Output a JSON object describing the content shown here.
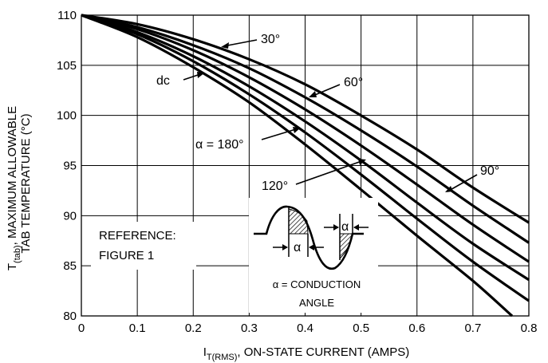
{
  "chart_data": {
    "type": "line",
    "xlabel": {
      "prefix": "I",
      "sub": "T(RMS)",
      "rest": ", ON-STATE CURRENT (AMPS)"
    },
    "ylabel": {
      "prefix": "T",
      "sub": "(tab)",
      "rest": ", MAXIMUM ALLOWABLE",
      "line2": "TAB TEMPERATURE (°C)"
    },
    "xlim": [
      0,
      0.8
    ],
    "ylim": [
      80,
      110
    ],
    "x_ticks": [
      "0",
      "0.1",
      "0.2",
      "0.3",
      "0.4",
      "0.5",
      "0.6",
      "0.7",
      "0.8"
    ],
    "y_ticks": [
      "80",
      "85",
      "90",
      "95",
      "100",
      "105",
      "110"
    ],
    "grid": true,
    "series": [
      {
        "name": "30°",
        "x": [
          0,
          0.1,
          0.2,
          0.3,
          0.4,
          0.5,
          0.6,
          0.7,
          0.8
        ],
        "y": [
          110,
          109.1,
          107.6,
          105.6,
          103.1,
          100.0,
          96.6,
          92.8,
          89.3
        ]
      },
      {
        "name": "60°",
        "x": [
          0,
          0.1,
          0.2,
          0.3,
          0.4,
          0.5,
          0.6,
          0.7,
          0.8
        ],
        "y": [
          110,
          108.8,
          107.0,
          104.7,
          101.8,
          98.5,
          94.9,
          91.0,
          87.3
        ]
      },
      {
        "name": "90°",
        "x": [
          0,
          0.1,
          0.2,
          0.3,
          0.4,
          0.5,
          0.6,
          0.7,
          0.8
        ],
        "y": [
          110,
          108.6,
          106.5,
          103.8,
          100.6,
          97.0,
          93.1,
          89.1,
          85.4
        ]
      },
      {
        "name": "120°",
        "x": [
          0,
          0.1,
          0.2,
          0.3,
          0.4,
          0.5,
          0.6,
          0.7,
          0.8
        ],
        "y": [
          110,
          108.3,
          105.9,
          102.9,
          99.4,
          95.5,
          91.3,
          87.2,
          83.6
        ]
      },
      {
        "name": "180°",
        "x": [
          0,
          0.1,
          0.2,
          0.3,
          0.4,
          0.5,
          0.6,
          0.7,
          0.8
        ],
        "y": [
          110,
          108.1,
          105.4,
          102.1,
          98.3,
          94.1,
          89.7,
          85.4,
          81.5
        ]
      },
      {
        "name": "dc",
        "x": [
          0,
          0.1,
          0.2,
          0.3,
          0.4,
          0.5,
          0.6,
          0.7,
          0.77
        ],
        "y": [
          110,
          107.8,
          104.8,
          101.3,
          97.1,
          92.6,
          88.0,
          83.5,
          80.0
        ]
      }
    ],
    "annotations": {
      "label_30": "30°",
      "label_60": "60°",
      "label_90": "90°",
      "label_120": "120°",
      "label_180": "α = 180°",
      "label_dc": "dc",
      "reference_line1": "REFERENCE:",
      "reference_line2": "FIGURE 1",
      "alpha_symbol": "α",
      "conduction_line1": "α = CONDUCTION",
      "conduction_line2": "ANGLE"
    }
  }
}
